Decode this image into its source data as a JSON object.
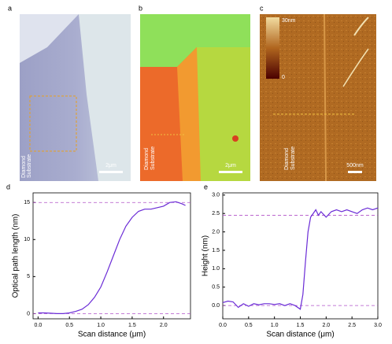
{
  "panels": {
    "a": {
      "label": "a",
      "scale_bar": "2μm",
      "substrate_label": [
        "Diamond",
        "Substrate"
      ]
    },
    "b": {
      "label": "b",
      "scale_bar": "2μm",
      "substrate_label": [
        "Diamond",
        "Substrate"
      ]
    },
    "c": {
      "label": "c",
      "scale_bar": "500nm",
      "substrate_label": [
        "Diamond",
        "Substrate"
      ],
      "colorbar_max": "30nm",
      "colorbar_min": "0"
    }
  },
  "chart_data": [
    {
      "type": "line",
      "panel_label": "d",
      "x_label": "Scan distance (μm)",
      "y_label": "Optical path length (nm)",
      "xlim": [
        -0.08,
        2.43
      ],
      "ylim": [
        -0.7,
        16.3
      ],
      "xticks": [
        {
          "value": 0,
          "label": "0.0"
        },
        0.5,
        {
          "value": 1,
          "label": "1.0"
        },
        1.5,
        {
          "value": 2,
          "label": "2.0"
        }
      ],
      "yticks": [
        0,
        5,
        10,
        15
      ],
      "hlines": [
        0,
        15
      ],
      "hline_color": "#b050c8",
      "series": [
        {
          "color": "#6a2bd6",
          "x": [
            0,
            0.1,
            0.2,
            0.3,
            0.4,
            0.5,
            0.6,
            0.7,
            0.8,
            0.9,
            1.0,
            1.1,
            1.2,
            1.3,
            1.4,
            1.5,
            1.6,
            1.7,
            1.8,
            1.9,
            2.0,
            2.1,
            2.2,
            2.3,
            2.35
          ],
          "values": [
            0.1,
            0.1,
            0.05,
            0,
            0,
            0.1,
            0.3,
            0.6,
            1.2,
            2.2,
            3.6,
            5.6,
            7.8,
            10,
            11.8,
            13,
            13.8,
            14.1,
            14.1,
            14.3,
            14.5,
            15,
            15.1,
            14.8,
            14.6
          ]
        }
      ]
    },
    {
      "type": "line",
      "panel_label": "e",
      "x_label": "Scan distance (μm)",
      "y_label": "Height (nm)",
      "xlim": [
        0,
        3
      ],
      "ylim": [
        -0.36,
        3.06
      ],
      "xticks": [
        {
          "value": 0,
          "label": "0.0"
        },
        0.5,
        {
          "value": 1,
          "label": "1.0"
        },
        1.5,
        {
          "value": 2,
          "label": "2.0"
        },
        2.5,
        {
          "value": 3,
          "label": "3.0"
        }
      ],
      "yticks": [
        {
          "value": 0,
          "label": "0.0"
        },
        0.5,
        {
          "value": 1,
          "label": "1.0"
        },
        1.5,
        {
          "value": 2,
          "label": "2.0"
        },
        2.5,
        {
          "value": 3,
          "label": "3.0"
        }
      ],
      "hlines": [
        0,
        2.45
      ],
      "hline_color": "#b050c8",
      "series": [
        {
          "color": "#6a2bd6",
          "x": [
            0,
            0.1,
            0.2,
            0.3,
            0.4,
            0.5,
            0.6,
            0.7,
            0.8,
            0.9,
            1.0,
            1.1,
            1.2,
            1.3,
            1.4,
            1.5,
            1.55,
            1.6,
            1.65,
            1.7,
            1.8,
            1.85,
            1.9,
            2.0,
            2.1,
            2.2,
            2.3,
            2.4,
            2.5,
            2.6,
            2.7,
            2.8,
            2.9,
            3.0
          ],
          "values": [
            0.08,
            0.12,
            0.1,
            -0.05,
            0.05,
            -0.02,
            0.05,
            0.02,
            0.05,
            0.05,
            0.03,
            0.05,
            0,
            0.05,
            0,
            -0.1,
            0.3,
            1.2,
            2.0,
            2.4,
            2.6,
            2.45,
            2.55,
            2.4,
            2.55,
            2.6,
            2.55,
            2.6,
            2.55,
            2.5,
            2.6,
            2.65,
            2.6,
            2.65
          ]
        }
      ]
    }
  ]
}
